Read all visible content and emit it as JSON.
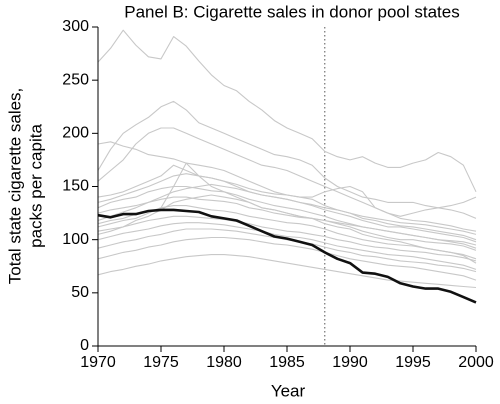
{
  "chart_data": {
    "type": "line",
    "title": "Panel B: Cigarette sales in donor pool states",
    "x_label": "Year",
    "y_label": [
      "Total state cigarette sales,",
      "packs per capita"
    ],
    "x": [
      1970,
      1971,
      1972,
      1973,
      1974,
      1975,
      1976,
      1977,
      1978,
      1979,
      1980,
      1981,
      1982,
      1983,
      1984,
      1985,
      1986,
      1987,
      1988,
      1989,
      1990,
      1991,
      1992,
      1993,
      1994,
      1995,
      1996,
      1997,
      1998,
      1999,
      2000
    ],
    "xlim": [
      1970,
      2000
    ],
    "xticks": [
      1970,
      1975,
      1980,
      1985,
      1990,
      1995,
      2000
    ],
    "ylim": [
      0,
      300
    ],
    "yticks": [
      0,
      50,
      100,
      150,
      200,
      250,
      300
    ],
    "reference_x": 1988,
    "series": [
      {
        "color": "#c8c8c8",
        "values": [
          267,
          280,
          297,
          283,
          272,
          270,
          291,
          282,
          268,
          255,
          245,
          240,
          230,
          222,
          212,
          205,
          200,
          195,
          183,
          178,
          175,
          178,
          172,
          168,
          168,
          172,
          175,
          182,
          178,
          170,
          145
        ]
      },
      {
        "color": "#c8c8c8",
        "values": [
          165,
          185,
          200,
          208,
          215,
          225,
          230,
          222,
          210,
          205,
          200,
          195,
          190,
          185,
          180,
          178,
          175,
          170,
          158,
          150,
          145,
          140,
          138,
          135,
          135,
          135,
          132,
          130,
          128,
          125,
          120
        ]
      },
      {
        "color": "#c8c8c8",
        "values": [
          155,
          165,
          175,
          190,
          200,
          205,
          205,
          200,
          195,
          190,
          185,
          180,
          175,
          170,
          168,
          165,
          160,
          155,
          150,
          145,
          140,
          135,
          130,
          125,
          120,
          118,
          117,
          115,
          113,
          110,
          108
        ]
      },
      {
        "color": "#c8c8c8",
        "values": [
          190,
          192,
          188,
          185,
          180,
          178,
          176,
          172,
          170,
          168,
          165,
          160,
          155,
          150,
          145,
          142,
          140,
          138,
          132,
          128,
          125,
          122,
          120,
          118,
          116,
          115,
          114,
          112,
          110,
          108,
          105
        ]
      },
      {
        "color": "#c8c8c8",
        "values": [
          140,
          142,
          145,
          150,
          155,
          160,
          170,
          165,
          160,
          158,
          155,
          150,
          145,
          142,
          140,
          138,
          135,
          132,
          128,
          125,
          122,
          118,
          115,
          112,
          112,
          110,
          108,
          106,
          104,
          102,
          98
        ]
      },
      {
        "color": "#c8c8c8",
        "values": [
          130,
          135,
          138,
          140,
          145,
          148,
          150,
          150,
          148,
          146,
          145,
          142,
          138,
          135,
          132,
          130,
          128,
          125,
          122,
          118,
          115,
          112,
          110,
          108,
          106,
          104,
          102,
          100,
          98,
          96,
          92
        ]
      },
      {
        "color": "#c8c8c8",
        "values": [
          125,
          128,
          130,
          132,
          135,
          138,
          140,
          140,
          138,
          137,
          136,
          134,
          130,
          128,
          125,
          123,
          121,
          120,
          118,
          115,
          112,
          108,
          105,
          102,
          100,
          100,
          98,
          97,
          96,
          94,
          90
        ]
      },
      {
        "color": "#c8c8c8",
        "values": [
          115,
          118,
          120,
          124,
          126,
          130,
          132,
          132,
          130,
          128,
          127,
          125,
          122,
          120,
          118,
          116,
          115,
          113,
          110,
          106,
          103,
          100,
          98,
          96,
          95,
          94,
          92,
          90,
          88,
          86,
          82
        ]
      },
      {
        "color": "#c8c8c8",
        "values": [
          108,
          110,
          112,
          115,
          118,
          120,
          122,
          122,
          121,
          120,
          119,
          117,
          115,
          112,
          110,
          108,
          107,
          105,
          103,
          100,
          98,
          95,
          93,
          92,
          90,
          89,
          88,
          86,
          85,
          83,
          80
        ]
      },
      {
        "color": "#c8c8c8",
        "values": [
          100,
          103,
          106,
          108,
          110,
          113,
          115,
          116,
          116,
          115,
          114,
          112,
          110,
          108,
          105,
          103,
          102,
          100,
          97,
          94,
          92,
          90,
          88,
          86,
          85,
          84,
          82,
          80,
          78,
          76,
          72
        ]
      },
      {
        "color": "#c8c8c8",
        "values": [
          92,
          95,
          98,
          100,
          103,
          105,
          108,
          110,
          110,
          110,
          109,
          108,
          106,
          104,
          102,
          100,
          98,
          96,
          93,
          90,
          88,
          85,
          84,
          82,
          80,
          79,
          78,
          76,
          75,
          73,
          70
        ]
      },
      {
        "color": "#c8c8c8",
        "values": [
          82,
          85,
          88,
          90,
          93,
          95,
          98,
          100,
          101,
          102,
          102,
          101,
          100,
          98,
          96,
          95,
          93,
          91,
          88,
          85,
          82,
          80,
          78,
          76,
          75,
          74,
          72,
          70,
          68,
          66,
          62
        ]
      },
      {
        "color": "#c8c8c8",
        "values": [
          67,
          70,
          72,
          75,
          77,
          80,
          82,
          84,
          85,
          86,
          86,
          85,
          84,
          82,
          80,
          78,
          76,
          74,
          72,
          70,
          68,
          66,
          64,
          62,
          61,
          60,
          59,
          58,
          57,
          56,
          55
        ]
      },
      {
        "color": "#c8c8c8",
        "values": [
          135,
          138,
          142,
          146,
          150,
          155,
          160,
          162,
          160,
          158,
          155,
          152,
          148,
          145,
          143,
          142,
          140,
          140,
          145,
          148,
          150,
          145,
          130,
          125,
          122,
          125,
          128,
          130,
          132,
          135,
          140
        ]
      },
      {
        "color": "#c8c8c8",
        "values": [
          118,
          122,
          126,
          130,
          135,
          140,
          145,
          148,
          150,
          152,
          150,
          148,
          145,
          142,
          140,
          138,
          135,
          133,
          130,
          128,
          125,
          120,
          118,
          115,
          113,
          112,
          110,
          108,
          106,
          104,
          100
        ]
      },
      {
        "color": "#c8c8c8",
        "values": [
          105,
          108,
          112,
          118,
          122,
          128,
          135,
          138,
          140,
          142,
          140,
          138,
          135,
          130,
          128,
          125,
          122,
          120,
          115,
          112,
          110,
          105,
          102,
          100,
          98,
          95,
          92,
          90,
          88,
          85,
          78
        ]
      },
      {
        "color": "#c8c8c8",
        "values": [
          112,
          115,
          118,
          120,
          125,
          130,
          150,
          172,
          160,
          150,
          145,
          140,
          135,
          130,
          128,
          125,
          122,
          120,
          118,
          116,
          114,
          112,
          110,
          108,
          106,
          104,
          102,
          100,
          99,
          98,
          95
        ]
      },
      {
        "color": "#111111",
        "values": [
          123,
          121,
          124,
          124,
          127,
          128,
          128,
          127,
          126,
          122,
          120,
          118,
          113,
          108,
          103,
          101,
          98,
          95,
          88,
          82,
          78,
          69,
          68,
          65,
          59,
          56,
          54,
          54,
          51,
          46,
          41
        ]
      }
    ]
  }
}
